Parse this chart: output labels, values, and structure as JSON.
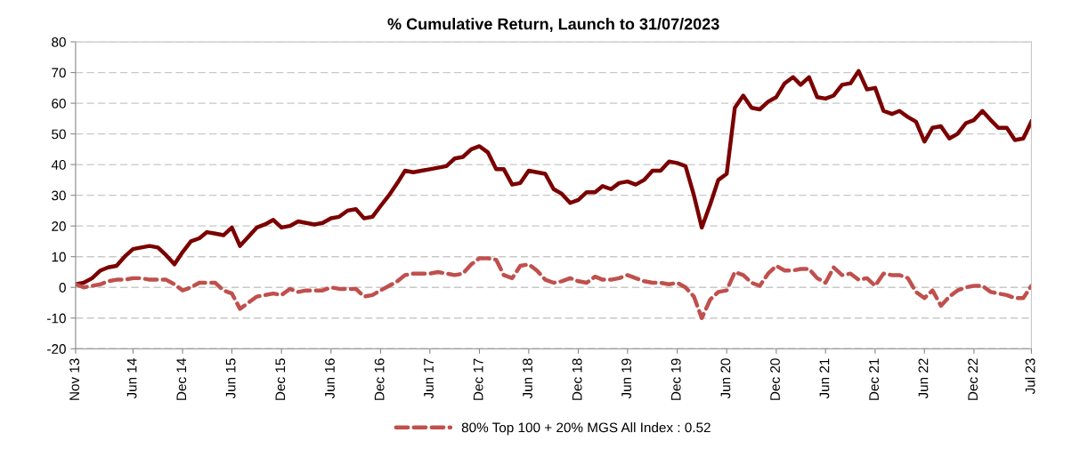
{
  "chart_data": {
    "type": "line",
    "title": "% Cumulative Return, Launch to 31/07/2023",
    "x": [
      "2013-11",
      "2013-12",
      "2014-01",
      "2014-02",
      "2014-03",
      "2014-04",
      "2014-05",
      "2014-06",
      "2014-07",
      "2014-08",
      "2014-09",
      "2014-10",
      "2014-11",
      "2014-12",
      "2015-01",
      "2015-02",
      "2015-03",
      "2015-04",
      "2015-05",
      "2015-06",
      "2015-07",
      "2015-08",
      "2015-09",
      "2015-10",
      "2015-11",
      "2015-12",
      "2016-01",
      "2016-02",
      "2016-03",
      "2016-04",
      "2016-05",
      "2016-06",
      "2016-07",
      "2016-08",
      "2016-09",
      "2016-10",
      "2016-11",
      "2016-12",
      "2017-01",
      "2017-02",
      "2017-03",
      "2017-04",
      "2017-05",
      "2017-06",
      "2017-07",
      "2017-08",
      "2017-09",
      "2017-10",
      "2017-11",
      "2017-12",
      "2018-01",
      "2018-02",
      "2018-03",
      "2018-04",
      "2018-05",
      "2018-06",
      "2018-07",
      "2018-08",
      "2018-09",
      "2018-10",
      "2018-11",
      "2018-12",
      "2019-01",
      "2019-02",
      "2019-03",
      "2019-04",
      "2019-05",
      "2019-06",
      "2019-07",
      "2019-08",
      "2019-09",
      "2019-10",
      "2019-11",
      "2019-12",
      "2020-01",
      "2020-02",
      "2020-03",
      "2020-04",
      "2020-05",
      "2020-06",
      "2020-07",
      "2020-08",
      "2020-09",
      "2020-10",
      "2020-11",
      "2020-12",
      "2021-01",
      "2021-02",
      "2021-03",
      "2021-04",
      "2021-05",
      "2021-06",
      "2021-07",
      "2021-08",
      "2021-09",
      "2021-10",
      "2021-11",
      "2021-12",
      "2022-01",
      "2022-02",
      "2022-03",
      "2022-04",
      "2022-05",
      "2022-06",
      "2022-07",
      "2022-08",
      "2022-09",
      "2022-10",
      "2022-11",
      "2022-12",
      "2023-01",
      "2023-02",
      "2023-03",
      "2023-04",
      "2023-05",
      "2023-06",
      "2023-07"
    ],
    "series": [
      {
        "color": "#7b0000",
        "line_style": "solid",
        "values": [
          1,
          1.5,
          3,
          5.5,
          6.5,
          7,
          10,
          12.5,
          13,
          13.5,
          13,
          10.5,
          7.5,
          11.5,
          15,
          16,
          18,
          17.5,
          17,
          19.5,
          13.5,
          16.5,
          19.5,
          20.5,
          22,
          19.5,
          20,
          21.5,
          21,
          20.5,
          21,
          22.5,
          23,
          25,
          25.5,
          22.5,
          23,
          26.5,
          30,
          34,
          38,
          37.5,
          38,
          38.5,
          39,
          39.5,
          42,
          42.5,
          45,
          46,
          44,
          38.5,
          38.5,
          33.5,
          34,
          38,
          37.5,
          37,
          32,
          30.5,
          27.5,
          28.5,
          31,
          31,
          33,
          32,
          34,
          34.5,
          33.5,
          35,
          38,
          38,
          41,
          40.5,
          39.5,
          30,
          19.5,
          27,
          35,
          37,
          58.5,
          62.5,
          58.5,
          58,
          60.5,
          62,
          66.5,
          68.5,
          66,
          68.5,
          62,
          61.5,
          62.5,
          66,
          66.5,
          70.5,
          64.5,
          65,
          57.5,
          56.5,
          57.5,
          55.5,
          54,
          47.5,
          52,
          52.5,
          48.5,
          50,
          53.5,
          54.5,
          57.5,
          54.5,
          52,
          52,
          48,
          48.5,
          54
        ]
      },
      {
        "name": "80% Top 100 + 20% MGS All Index : 0.52",
        "color": "#c0504d",
        "line_style": "dashed",
        "values": [
          1,
          0,
          0.5,
          1,
          2,
          2.5,
          2.5,
          3,
          3,
          2.5,
          2.5,
          2.5,
          1,
          -1,
          0,
          1.5,
          1.5,
          1.5,
          -1,
          -2,
          -7,
          -5,
          -3,
          -2.5,
          -2,
          -2.5,
          -0.5,
          -1.5,
          -1,
          -1,
          -1,
          0,
          -0.5,
          -0.5,
          -0.5,
          -3,
          -2.5,
          -1,
          0.5,
          2,
          4,
          4.5,
          4.5,
          4.5,
          5,
          4.5,
          4,
          4.5,
          7.5,
          9.5,
          9.5,
          9,
          4,
          3,
          7,
          7.5,
          5.5,
          2.5,
          1.5,
          2,
          3,
          2,
          1.5,
          3.5,
          2.5,
          2.5,
          3,
          4,
          3,
          2,
          1.5,
          1.5,
          1,
          1.5,
          0,
          -3,
          -10,
          -4,
          -1.5,
          -1,
          5,
          4,
          1.5,
          0.5,
          4.5,
          7,
          5.5,
          5.5,
          6,
          6,
          3,
          1.5,
          6.5,
          4,
          4.5,
          2.5,
          3,
          0.5,
          4.5,
          4,
          4,
          3,
          -1.5,
          -3.5,
          -1,
          -6,
          -3,
          -1,
          0,
          0.5,
          0.5,
          -1.5,
          -2,
          -2.5,
          -3.5,
          -3.5,
          0.5
        ]
      }
    ],
    "xlim": [
      "2013-11",
      "2023-07"
    ],
    "xticks": [
      {
        "value": "2013-11",
        "label": "Nov 13"
      },
      {
        "value": "2014-06",
        "label": "Jun 14"
      },
      {
        "value": "2014-12",
        "label": "Dec 14"
      },
      {
        "value": "2015-06",
        "label": "Jun 15"
      },
      {
        "value": "2015-12",
        "label": "Dec 15"
      },
      {
        "value": "2016-06",
        "label": "Jun 16"
      },
      {
        "value": "2016-12",
        "label": "Dec 16"
      },
      {
        "value": "2017-06",
        "label": "Jun 17"
      },
      {
        "value": "2017-12",
        "label": "Dec 17"
      },
      {
        "value": "2018-06",
        "label": "Jun 18"
      },
      {
        "value": "2018-12",
        "label": "Dec 18"
      },
      {
        "value": "2019-06",
        "label": "Jun 19"
      },
      {
        "value": "2019-12",
        "label": "Dec 19"
      },
      {
        "value": "2020-06",
        "label": "Jun 20"
      },
      {
        "value": "2020-12",
        "label": "Dec 20"
      },
      {
        "value": "2021-06",
        "label": "Jun 21"
      },
      {
        "value": "2021-12",
        "label": "Dec 21"
      },
      {
        "value": "2022-06",
        "label": "Jun 22"
      },
      {
        "value": "2022-12",
        "label": "Dec 22"
      },
      {
        "value": "2023-07",
        "label": "Jul 23"
      }
    ],
    "ylim": [
      -20,
      80
    ],
    "yticks": [
      -20,
      -10,
      0,
      10,
      20,
      30,
      40,
      50,
      60,
      70,
      80
    ],
    "grid": "y",
    "legend": "bottom",
    "marker": "none"
  }
}
